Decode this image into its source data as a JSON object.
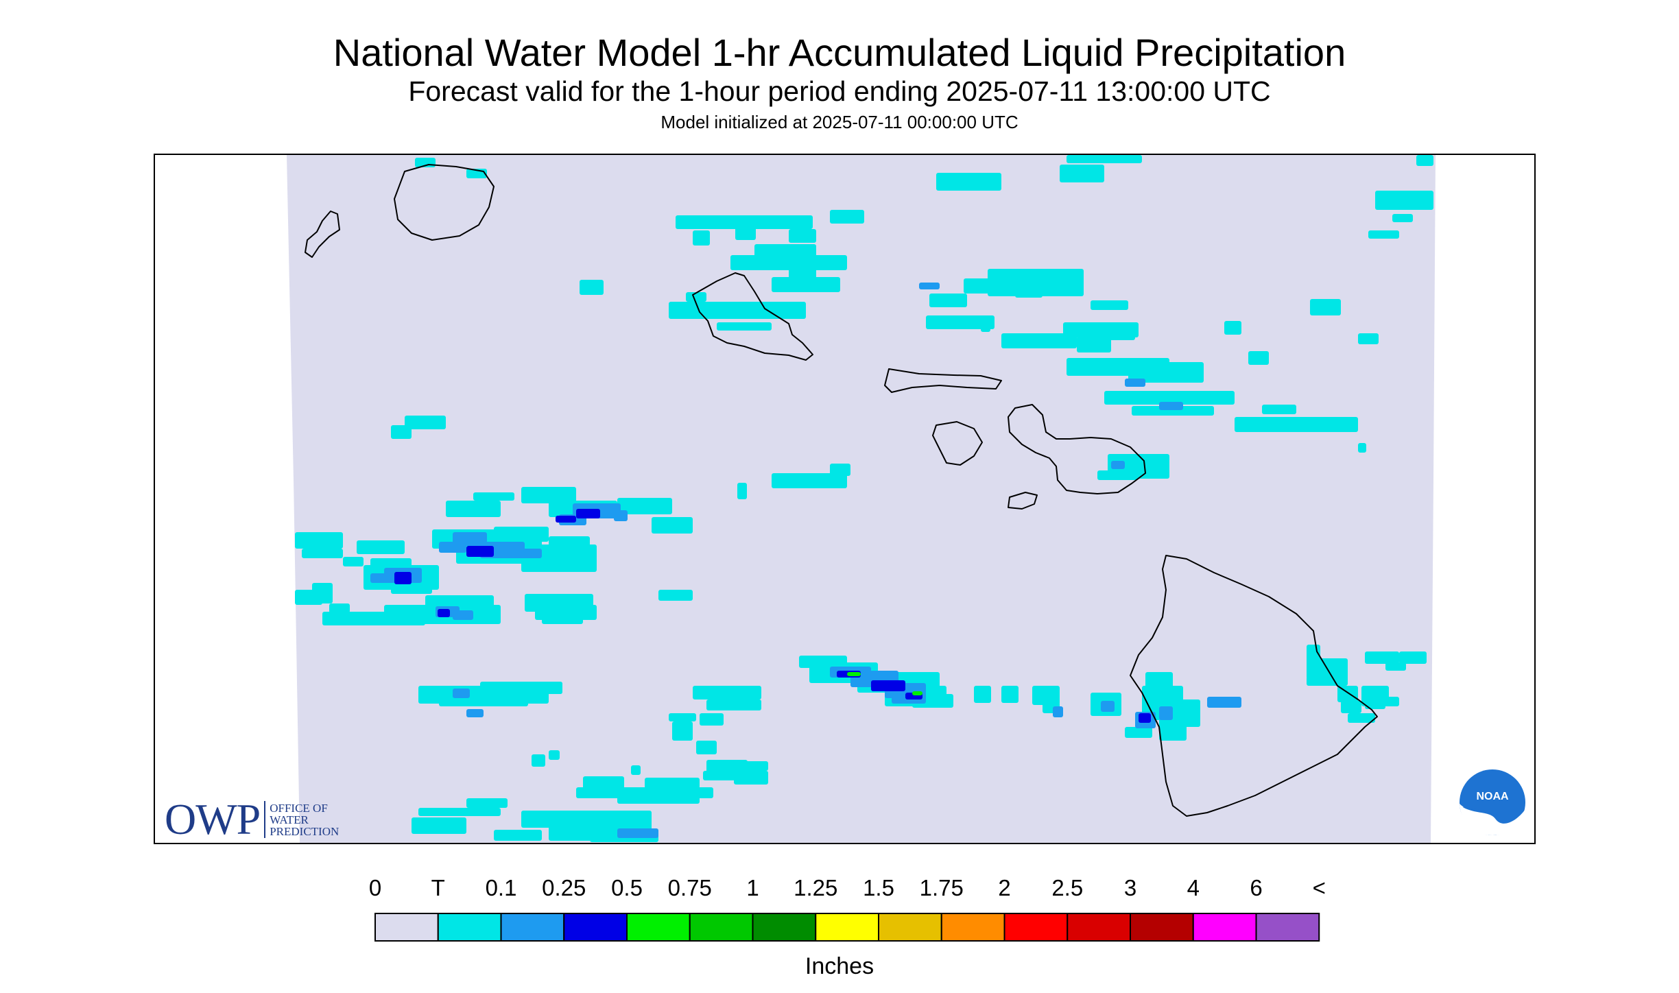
{
  "header": {
    "title": "National Water Model 1-hr Accumulated Liquid Precipitation",
    "subtitle": "Forecast valid for the 1-hour period ending 2025-07-11 13:00:00 UTC",
    "init_line": "Model initialized at 2025-07-11 00:00:00 UTC"
  },
  "map": {
    "region": "Hawaiian Islands",
    "background_color": "#dcdcee",
    "coastline_color": "#000000"
  },
  "legend": {
    "units": "Inches",
    "labels": [
      "0",
      "T",
      "0.1",
      "0.25",
      "0.5",
      "0.75",
      "1",
      "1.25",
      "1.5",
      "1.75",
      "2",
      "2.5",
      "3",
      "4",
      "6",
      "<"
    ],
    "colors": [
      "#dcdcee",
      "#00e6e6",
      "#1e9bf0",
      "#0000e6",
      "#00f000",
      "#00c800",
      "#008c00",
      "#ffff00",
      "#e6c000",
      "#ff8c00",
      "#ff0000",
      "#d90000",
      "#b40000",
      "#ff00ff",
      "#9650c8"
    ]
  },
  "logos": {
    "owp_mark": "OWP",
    "owp_words": [
      "OFFICE OF",
      "WATER",
      "PREDICTION"
    ],
    "noaa_text": "NOAA"
  }
}
